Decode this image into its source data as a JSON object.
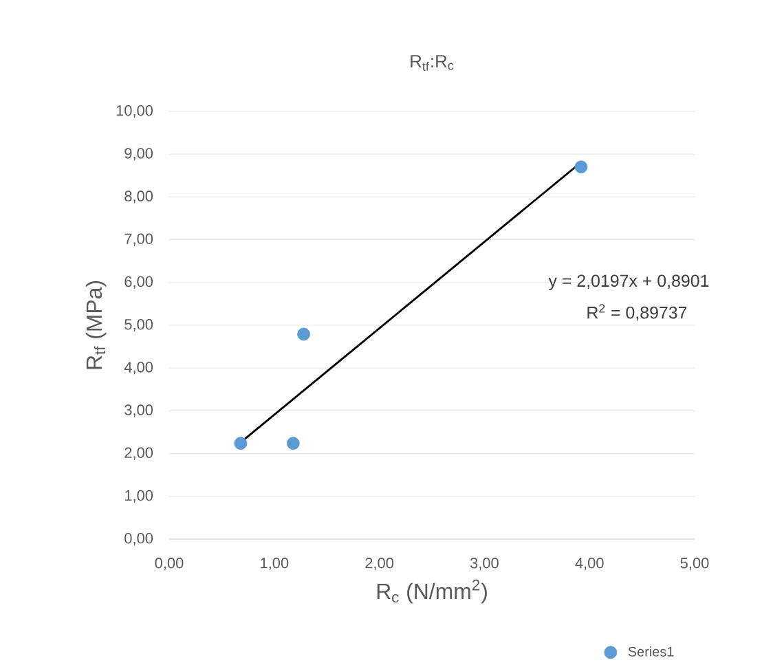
{
  "chart_data": {
    "type": "scatter",
    "title": "R$_{tf}$:R$_{c}$",
    "xlabel": "R$_{c}$ (N/mm$^{2}$)",
    "ylabel": "R$_{tf}$ (MPa)",
    "annotations": [
      "y = 2,0197x + 0,8901",
      "R$^{2}$ = 0,89737"
    ],
    "xlim": [
      0,
      5
    ],
    "ylim": [
      0,
      10
    ],
    "xticks": [
      {
        "value": 0,
        "label": "0,00"
      },
      {
        "value": 1,
        "label": "1,00"
      },
      {
        "value": 2,
        "label": "2,00"
      },
      {
        "value": 3,
        "label": "3,00"
      },
      {
        "value": 4,
        "label": "4,00"
      },
      {
        "value": 5,
        "label": "5,00"
      }
    ],
    "yticks": [
      {
        "value": 0,
        "label": "0,00"
      },
      {
        "value": 1,
        "label": "1,00"
      },
      {
        "value": 2,
        "label": "2,00"
      },
      {
        "value": 3,
        "label": "3,00"
      },
      {
        "value": 4,
        "label": "4,00"
      },
      {
        "value": 5,
        "label": "5,00"
      },
      {
        "value": 6,
        "label": "6,00"
      },
      {
        "value": 7,
        "label": "7,00"
      },
      {
        "value": 8,
        "label": "8,00"
      },
      {
        "value": 9,
        "label": "9,00"
      },
      {
        "value": 10,
        "label": "10,00"
      }
    ],
    "grid": "y",
    "legend": "bottom right",
    "marker": "circle",
    "series": [
      {
        "name": "Series1",
        "color": "#5b9bd5",
        "x": [
          0.68,
          1.18,
          1.28,
          3.92
        ],
        "values": [
          2.24,
          2.24,
          4.79,
          8.7
        ]
      },
      {
        "type": "line",
        "marker": "none",
        "color": "#000000",
        "x": [
          0.68,
          3.92
        ],
        "values": [
          2.26,
          8.81
        ]
      }
    ]
  }
}
